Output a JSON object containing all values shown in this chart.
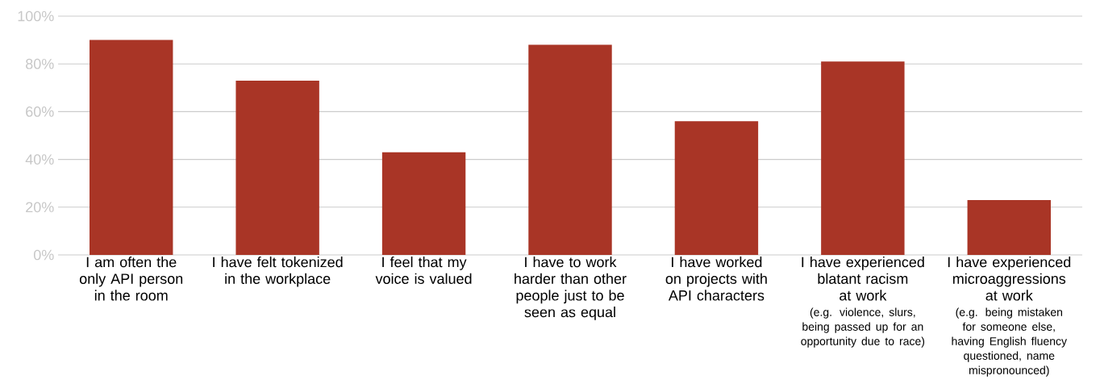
{
  "chart_data": {
    "type": "bar",
    "categories": [
      "I am often the only API person in the room",
      "I have felt tokenized in the workplace",
      "I feel that my voice is valued",
      "I have to work harder than other people just to be seen as equal",
      "I have worked on projects with API characters",
      "I have experienced blatant racism at work",
      "I have experienced microaggressions at work"
    ],
    "values": [
      90,
      73,
      43,
      88,
      56,
      81,
      23
    ],
    "color": "#a93526",
    "ylim": [
      0,
      100
    ],
    "yticks": [
      {
        "value": 0,
        "label": "0%"
      },
      {
        "value": 20,
        "label": "20%"
      },
      {
        "value": 40,
        "label": "40%"
      },
      {
        "value": 60,
        "label": "60%"
      },
      {
        "value": 80,
        "label": "80%"
      },
      {
        "value": 100,
        "label": "100%"
      }
    ],
    "grid": "y",
    "annotations": [
      "(e.g. violence, slurs, being passed up for an opportunity due to race)",
      "(e.g. being mistaken for someone else, having English fluency questioned, name mispronounced)"
    ]
  }
}
